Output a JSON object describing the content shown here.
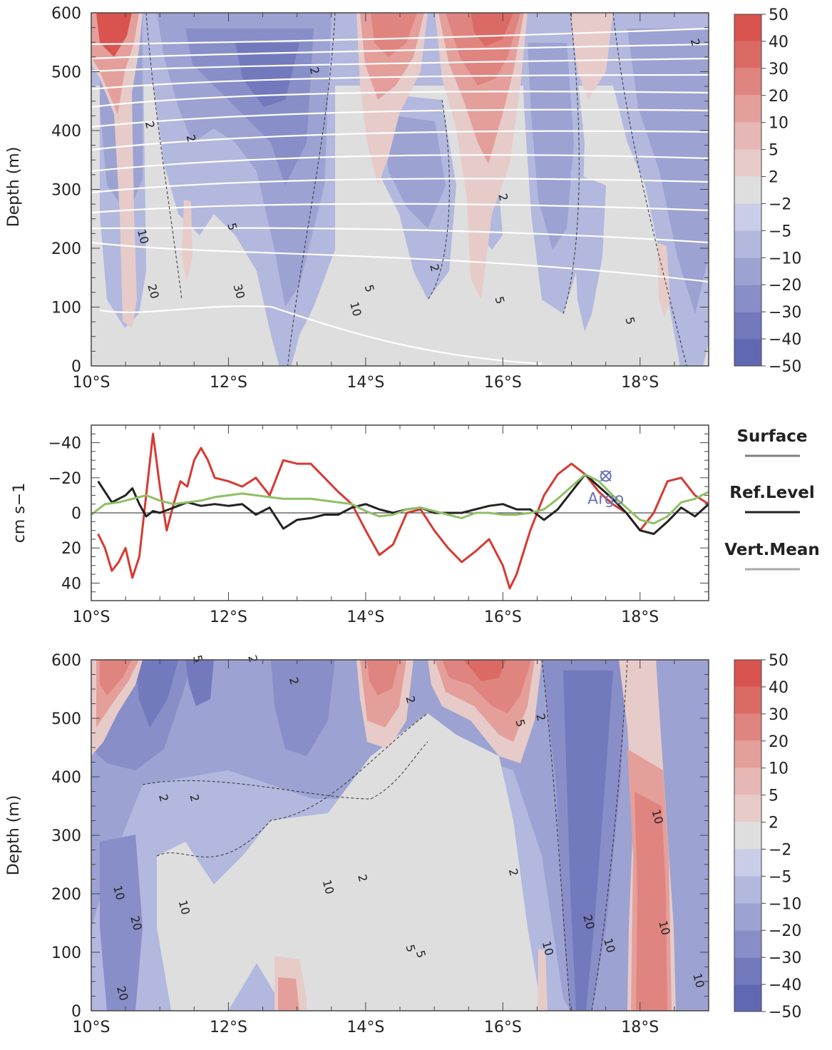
{
  "chart_data": [
    {
      "type": "heatmap",
      "panel": "top",
      "ylabel": "Depth (m)",
      "xlim": [
        10,
        19
      ],
      "ylim": [
        600,
        0
      ],
      "x_ticks": [
        10,
        12,
        14,
        16,
        18
      ],
      "x_tick_labels": [
        "10°S",
        "12°S",
        "14°S",
        "16°S",
        "18°S"
      ],
      "y_ticks": [
        0,
        100,
        200,
        300,
        400,
        500,
        600
      ],
      "y_tick_labels": [
        "0",
        "100",
        "200",
        "300",
        "400",
        "500",
        "600"
      ],
      "contour_labels": [
        {
          "text": "20",
          "x": 10.85,
          "y": 125
        },
        {
          "text": "10",
          "x": 10.7,
          "y": 218
        },
        {
          "text": "2",
          "x": 10.8,
          "y": 408
        },
        {
          "text": "5",
          "x": 12.0,
          "y": 235
        },
        {
          "text": "30",
          "x": 12.1,
          "y": 125
        },
        {
          "text": "2",
          "x": 11.4,
          "y": 385
        },
        {
          "text": "10",
          "x": 13.8,
          "y": 95
        },
        {
          "text": "5",
          "x": 14.0,
          "y": 130
        },
        {
          "text": "2",
          "x": 14.95,
          "y": 165
        },
        {
          "text": "5",
          "x": 15.9,
          "y": 110
        },
        {
          "text": "2",
          "x": 15.95,
          "y": 285
        },
        {
          "text": "5",
          "x": 17.8,
          "y": 75
        },
        {
          "text": "2",
          "x": 13.2,
          "y": 500
        },
        {
          "text": "2",
          "x": 18.75,
          "y": 548
        }
      ]
    },
    {
      "type": "line",
      "panel": "middle",
      "ylabel": "cm s−1",
      "xlim": [
        10,
        19
      ],
      "ylim": [
        -50,
        50
      ],
      "x_ticks": [
        10,
        12,
        14,
        16,
        18
      ],
      "x_tick_labels": [
        "10°S",
        "12°S",
        "14°S",
        "16°S",
        "18°S"
      ],
      "y_ticks": [
        -40,
        -20,
        0,
        20,
        40
      ],
      "y_tick_labels": [
        "−40",
        "−20",
        "0",
        "20",
        "40"
      ],
      "legend_position": "right",
      "series": [
        {
          "name": "Surface",
          "color": "#d63a32",
          "x": [
            10.1,
            10.2,
            10.3,
            10.4,
            10.5,
            10.6,
            10.7,
            10.8,
            10.9,
            11.0,
            11.1,
            11.2,
            11.3,
            11.4,
            11.5,
            11.6,
            11.7,
            11.8,
            12.0,
            12.2,
            12.4,
            12.6,
            12.8,
            13.0,
            13.2,
            13.4,
            13.6,
            13.8,
            14.0,
            14.2,
            14.4,
            14.6,
            14.8,
            15.0,
            15.2,
            15.4,
            15.6,
            15.8,
            16.0,
            16.1,
            16.2,
            16.4,
            16.6,
            16.8,
            17.0,
            17.2,
            17.4,
            17.6,
            17.8,
            18.0,
            18.2,
            18.4,
            18.6,
            18.8,
            19.0
          ],
          "y": [
            12,
            20,
            33,
            28,
            20,
            37,
            25,
            -10,
            -45,
            -15,
            10,
            -5,
            -18,
            -15,
            -30,
            -37,
            -30,
            -20,
            -18,
            -15,
            -20,
            -10,
            -30,
            -28,
            -28,
            -20,
            -12,
            -5,
            10,
            24,
            18,
            0,
            -2,
            10,
            20,
            28,
            22,
            15,
            30,
            43,
            35,
            10,
            -10,
            -22,
            -28,
            -22,
            -12,
            -5,
            0,
            10,
            0,
            -18,
            -20,
            -10,
            -5
          ]
        },
        {
          "name": "Ref.Level",
          "color": "#222222",
          "x": [
            10.1,
            10.3,
            10.5,
            10.6,
            10.7,
            10.8,
            10.9,
            11.0,
            11.2,
            11.4,
            11.6,
            11.8,
            12.0,
            12.2,
            12.4,
            12.6,
            12.8,
            13.0,
            13.2,
            13.4,
            13.6,
            13.8,
            14.0,
            14.2,
            14.4,
            14.6,
            14.8,
            15.0,
            15.2,
            15.4,
            15.6,
            15.8,
            16.0,
            16.2,
            16.4,
            16.6,
            16.8,
            17.0,
            17.2,
            17.4,
            17.6,
            17.8,
            18.0,
            18.2,
            18.4,
            18.6,
            18.8,
            19.0
          ],
          "y": [
            -18,
            -6,
            -10,
            -14,
            -5,
            2,
            -1,
            0,
            -3,
            -6,
            -4,
            -5,
            -4,
            -5,
            1,
            -3,
            9,
            4,
            3,
            1,
            1,
            -3,
            -5,
            -2,
            0,
            -2,
            -3,
            0,
            0,
            0,
            -2,
            -4,
            -5,
            -2,
            -2,
            4,
            -2,
            -12,
            -22,
            -15,
            -8,
            0,
            10,
            12,
            5,
            -3,
            2,
            -5
          ]
        },
        {
          "name": "Vert.Mean",
          "color": "#8dc064",
          "x": [
            10.0,
            10.2,
            10.4,
            10.6,
            10.8,
            11.0,
            11.2,
            11.4,
            11.6,
            11.8,
            12.0,
            12.2,
            12.4,
            12.6,
            12.8,
            13.0,
            13.2,
            13.4,
            13.6,
            13.8,
            14.0,
            14.2,
            14.4,
            14.6,
            14.8,
            15.0,
            15.2,
            15.4,
            15.6,
            15.8,
            16.0,
            16.2,
            16.4,
            16.6,
            16.8,
            17.0,
            17.2,
            17.4,
            17.6,
            17.8,
            18.0,
            18.2,
            18.4,
            18.6,
            18.8,
            19.0
          ],
          "y": [
            1,
            -5,
            -6,
            -8,
            -10,
            -7,
            -5,
            -6,
            -7,
            -9,
            -10,
            -11,
            -10,
            -9,
            -8,
            -8,
            -8,
            -7,
            -6,
            -5,
            -1,
            2,
            1,
            -2,
            -3,
            -1,
            1,
            3,
            0,
            0,
            1,
            1,
            0,
            -2,
            -8,
            -15,
            -22,
            -18,
            -10,
            -3,
            4,
            6,
            2,
            -6,
            -8,
            -12
          ]
        }
      ],
      "annotations": [
        {
          "text": "Argo",
          "marker": "circle-x",
          "color": "#6b74b8",
          "x": 17.5,
          "y": -21
        }
      ]
    },
    {
      "type": "heatmap",
      "panel": "bottom",
      "ylabel": "Depth (m)",
      "xlim": [
        10,
        19
      ],
      "ylim": [
        600,
        0
      ],
      "x_ticks": [
        10,
        12,
        14,
        16,
        18
      ],
      "x_tick_labels": [
        "10°S",
        "12°S",
        "14°S",
        "16°S",
        "18°S"
      ],
      "y_ticks": [
        0,
        100,
        200,
        300,
        400,
        500,
        600
      ],
      "y_tick_labels": [
        "0",
        "100",
        "200",
        "300",
        "400",
        "500",
        "600"
      ],
      "contour_labels": [
        {
          "text": "20",
          "x": 10.4,
          "y": 28
        },
        {
          "text": "20",
          "x": 10.6,
          "y": 148
        },
        {
          "text": "10",
          "x": 10.35,
          "y": 200
        },
        {
          "text": "10",
          "x": 11.3,
          "y": 175
        },
        {
          "text": "10",
          "x": 13.4,
          "y": 210
        },
        {
          "text": "5",
          "x": 14.6,
          "y": 105
        },
        {
          "text": "5",
          "x": 14.75,
          "y": 95
        },
        {
          "text": "2",
          "x": 13.9,
          "y": 225
        },
        {
          "text": "10",
          "x": 16.6,
          "y": 105
        },
        {
          "text": "10",
          "x": 17.5,
          "y": 110
        },
        {
          "text": "20",
          "x": 17.2,
          "y": 150
        },
        {
          "text": "10",
          "x": 18.3,
          "y": 140
        },
        {
          "text": "10",
          "x": 18.8,
          "y": 50
        },
        {
          "text": "2",
          "x": 16.1,
          "y": 235
        },
        {
          "text": "10",
          "x": 18.2,
          "y": 330
        },
        {
          "text": "2",
          "x": 11.0,
          "y": 362
        },
        {
          "text": "2",
          "x": 11.45,
          "y": 362
        },
        {
          "text": "5",
          "x": 16.2,
          "y": 490
        },
        {
          "text": "2",
          "x": 16.5,
          "y": 500
        },
        {
          "text": "2",
          "x": 14.6,
          "y": 530
        },
        {
          "text": "2",
          "x": 12.3,
          "y": 620
        },
        {
          "text": "2",
          "x": 12.9,
          "y": 562
        },
        {
          "text": "5",
          "x": 11.5,
          "y": 655
        }
      ]
    }
  ],
  "colorbar": {
    "levels": [
      "50",
      "40",
      "30",
      "20",
      "10",
      "5",
      "2",
      "−2",
      "−5",
      "−10",
      "−20",
      "−30",
      "−40",
      "−50"
    ],
    "colors": [
      "#d9534f",
      "#dc6a64",
      "#e08480",
      "#e49f9b",
      "#e6b7b4",
      "#e7cbc9",
      "#dedede",
      "#cacde8",
      "#b2b8de",
      "#9ca2d2",
      "#888ec7",
      "#7379bd",
      "#6168b3"
    ]
  },
  "legend": {
    "items": [
      {
        "label": "Surface",
        "color": "#808080"
      },
      {
        "label": "Ref.Level",
        "color": "#222222"
      },
      {
        "label": "Vert.Mean",
        "color": "#aaaaaa"
      }
    ]
  }
}
